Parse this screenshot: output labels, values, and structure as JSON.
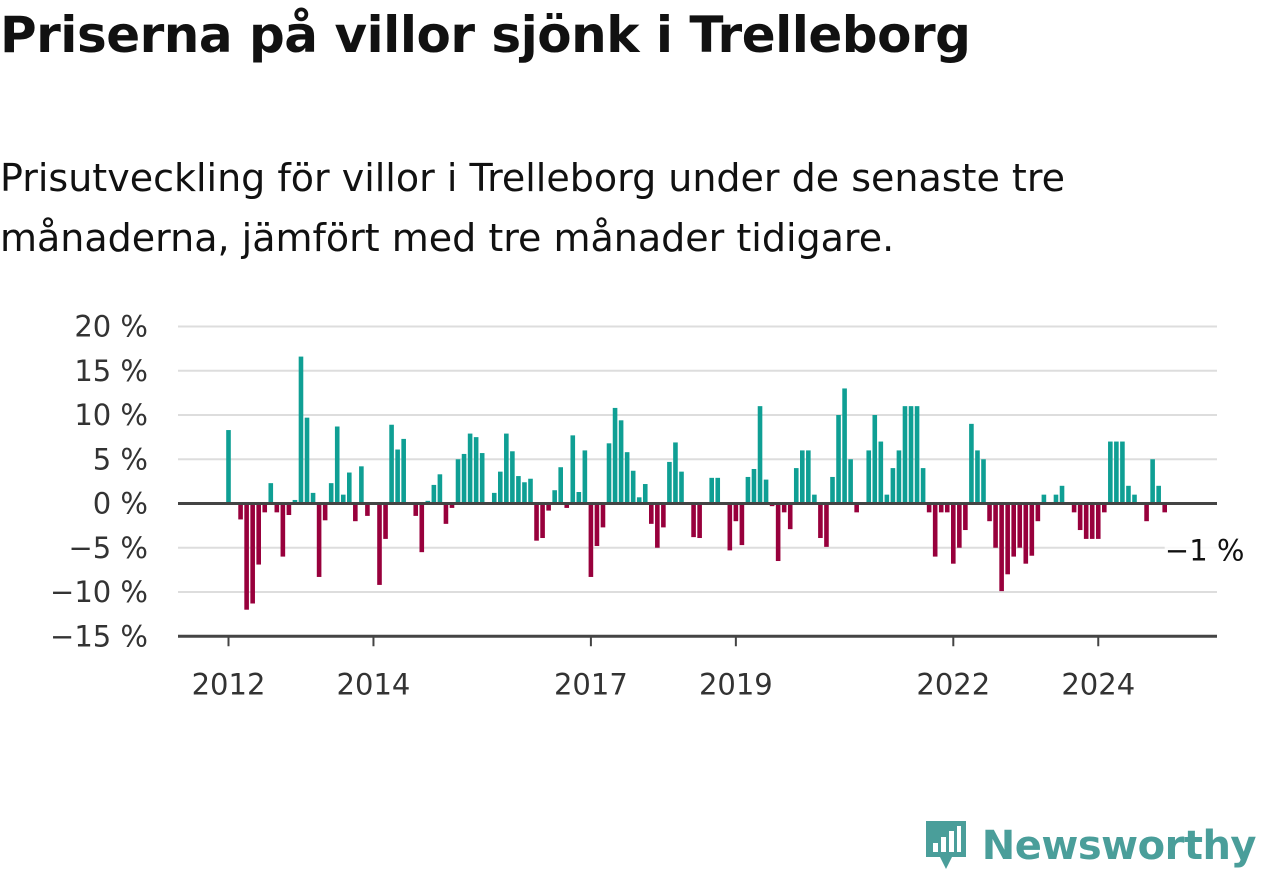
{
  "title": "Priserna på villor sjönk i Trelleborg",
  "subtitle": "Prisutveckling för villor i Trelleborg under de senaste tre månaderna, jämfört med tre månader tidigare.",
  "brand": {
    "name": "Newsworthy",
    "icon": "bar-chart-speech-bubble-icon",
    "color": "#4a9e9a"
  },
  "colors": {
    "positive": "#0f9f94",
    "negative": "#98003c",
    "grid": "#dddddd",
    "axis": "#444444"
  },
  "chart_data": {
    "type": "bar",
    "unit": "%",
    "x_start": "2012-01",
    "x_step": "month",
    "ylim": [
      -15,
      20
    ],
    "yticks": [
      {
        "value": 20,
        "label": "20 %"
      },
      {
        "value": 15,
        "label": "15 %"
      },
      {
        "value": 10,
        "label": "10 %"
      },
      {
        "value": 5,
        "label": "5 %"
      },
      {
        "value": 0,
        "label": "0 %"
      },
      {
        "value": -5,
        "label": "−5 %"
      },
      {
        "value": -10,
        "label": "−10 %"
      },
      {
        "value": -15,
        "label": "−15 %"
      }
    ],
    "xticks": [
      "2012",
      "2014",
      "2017",
      "2019",
      "2022",
      "2024"
    ],
    "grid": true,
    "annotation": {
      "text": "−1 %",
      "value": -1
    },
    "values": [
      8.3,
      0,
      -1.8,
      -12.0,
      -11.3,
      -6.9,
      -1.0,
      2.3,
      -1.0,
      -6.0,
      -1.3,
      0.4,
      16.6,
      9.7,
      1.2,
      -8.3,
      -1.9,
      2.3,
      8.7,
      1.0,
      3.5,
      -2.0,
      4.2,
      -1.4,
      0,
      -9.2,
      -4.0,
      8.9,
      6.1,
      7.3,
      0,
      -1.4,
      -5.5,
      0.3,
      2.1,
      3.3,
      -2.3,
      -0.5,
      5.0,
      5.6,
      7.9,
      7.5,
      5.7,
      0,
      1.2,
      3.6,
      7.9,
      5.9,
      3.1,
      2.4,
      2.8,
      -4.2,
      -3.9,
      -0.8,
      1.5,
      4.1,
      -0.5,
      7.7,
      1.3,
      6.0,
      -8.3,
      -4.8,
      -2.7,
      6.8,
      10.8,
      9.4,
      5.8,
      3.7,
      0.7,
      2.2,
      -2.3,
      -5.0,
      -2.7,
      4.7,
      6.9,
      3.6,
      0,
      -3.8,
      -3.9,
      0,
      2.9,
      2.9,
      0,
      -5.3,
      -2.0,
      -4.7,
      3.0,
      3.9,
      11.0,
      2.7,
      -0.3,
      -6.5,
      -1.0,
      -2.9,
      4.0,
      6.0,
      6.0,
      1.0,
      -3.9,
      -4.9,
      3.0,
      10.0,
      13.0,
      5.0,
      -1.0,
      0,
      6.0,
      10.0,
      7.0,
      1.0,
      4.0,
      6.0,
      11.0,
      11.0,
      11.0,
      4.0,
      -1.0,
      -6.0,
      -1.0,
      -1.0,
      -6.8,
      -5.0,
      -3.0,
      9.0,
      6.0,
      5.0,
      -2.0,
      -5.0,
      -9.9,
      -8.0,
      -6.0,
      -5.0,
      -6.8,
      -5.9,
      -2.0,
      1.0,
      0,
      1.0,
      2.0,
      0,
      -1.0,
      -3.0,
      -4.0,
      -4.0,
      -4.0,
      -1.0,
      7.0,
      7.0,
      7.0,
      2.0,
      1.0,
      0,
      -2.0,
      5.0,
      2.0,
      -1.0
    ]
  }
}
